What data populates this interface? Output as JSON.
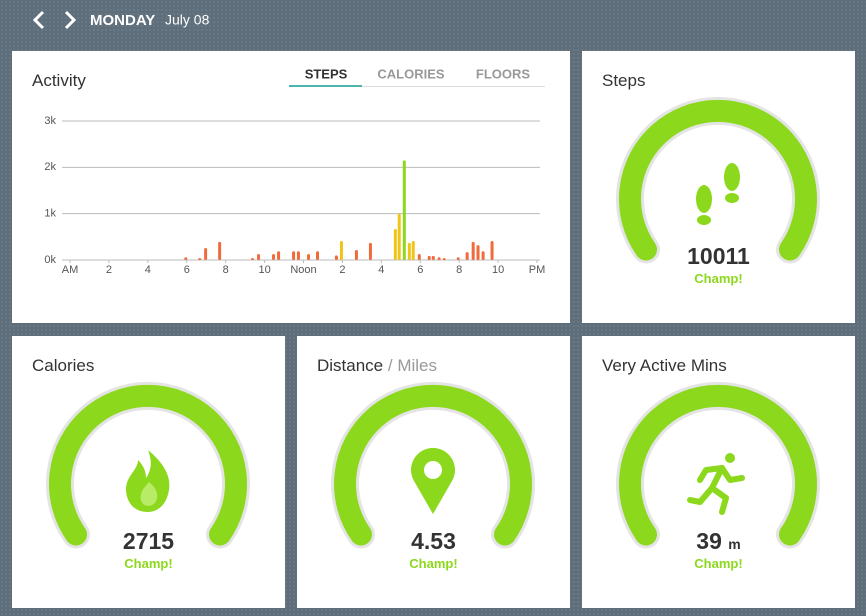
{
  "header": {
    "day": "MONDAY",
    "date": "July 08"
  },
  "activity": {
    "title": "Activity",
    "tabs": [
      "STEPS",
      "CALORIES",
      "FLOORS"
    ],
    "chart": {
      "type": "bar",
      "x": [
        5.95,
        6.67,
        6.97,
        7.69,
        9.38,
        9.69,
        10.46,
        10.72,
        11.49,
        11.74,
        12.26,
        12.72,
        13.69,
        13.95,
        14.72,
        15.44,
        16.72,
        16.92,
        17.18,
        17.44,
        17.64,
        17.95,
        18.46,
        18.67,
        18.97,
        19.23,
        19.95,
        20.41,
        20.72,
        20.97,
        21.23,
        21.69
      ],
      "values": [
        60,
        40,
        260,
        390,
        40,
        130,
        130,
        190,
        190,
        190,
        130,
        190,
        100,
        410,
        215,
        370,
        670,
        1000,
        2150,
        370,
        410,
        130,
        90,
        90,
        60,
        40,
        60,
        170,
        390,
        320,
        190,
        410
      ],
      "colors": [
        "#f06a3a",
        "#f06a3a",
        "#f06a3a",
        "#f06a3a",
        "#f06a3a",
        "#f06a3a",
        "#f06a3a",
        "#f06a3a",
        "#f06a3a",
        "#f06a3a",
        "#f06a3a",
        "#f06a3a",
        "#f06a3a",
        "#f0c419",
        "#f06a3a",
        "#f06a3a",
        "#f0c419",
        "#f0c419",
        "#8cd81c",
        "#f0c419",
        "#f0c419",
        "#f06a3a",
        "#f06a3a",
        "#f06a3a",
        "#f06a3a",
        "#f06a3a",
        "#f06a3a",
        "#f06a3a",
        "#f06a3a",
        "#f06a3a",
        "#f06a3a",
        "#f06a3a"
      ],
      "xlim": [
        0,
        24
      ],
      "xticks": [
        {
          "value": 0,
          "label": "AM"
        },
        2,
        4,
        6,
        8,
        10,
        {
          "value": 12,
          "label": "Noon"
        },
        {
          "value": 14,
          "label": "2"
        },
        {
          "value": 16,
          "label": "4"
        },
        {
          "value": 18,
          "label": "6"
        },
        {
          "value": 20,
          "label": "8"
        },
        {
          "value": 22,
          "label": "10"
        },
        {
          "value": 24,
          "label": "PM"
        }
      ],
      "ylim": [
        0,
        3000
      ],
      "yticks": [
        {
          "value": 0,
          "label": "0k"
        },
        {
          "value": 1000,
          "label": "1k"
        },
        {
          "value": 2000,
          "label": "2k"
        },
        {
          "value": 3000,
          "label": "3k"
        }
      ],
      "grid": true
    }
  },
  "tiles": [
    {
      "title": "Steps",
      "value": 10011,
      "status": "Champ!"
    },
    {
      "title": "Calories",
      "value": 2715,
      "status": "Champ!"
    },
    {
      "title": "Distance",
      "unit_label": "/ Miles",
      "value": 4.53,
      "status": "Champ!"
    },
    {
      "title": "Very Active Mins",
      "value": 39,
      "unit": "m",
      "status": "Champ!"
    }
  ]
}
